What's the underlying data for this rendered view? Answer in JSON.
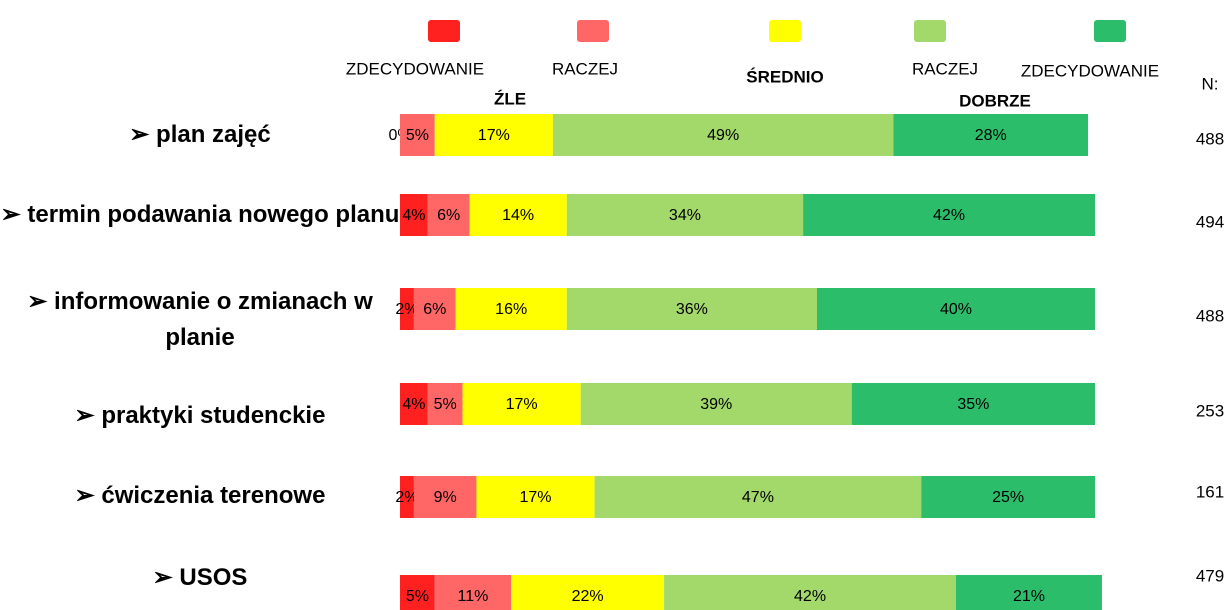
{
  "chart_data": {
    "type": "stacked_bar_horizontal",
    "categories": [
      "plan zajęć",
      "termin podawania nowego planu",
      "informowanie o zmianach w planie",
      "praktyki studenckie",
      "ćwiczenia terenowe",
      "USOS"
    ],
    "series": [
      {
        "name": "ZDECYDOWANIE",
        "color": "#ff2020",
        "values": [
          0,
          4,
          2,
          4,
          2,
          5
        ],
        "value_labels": [
          "0%",
          "4%",
          "2%",
          "4%",
          "2%",
          "5%"
        ]
      },
      {
        "name": "RACZEJ",
        "color": "#ff6666",
        "values": [
          5,
          6,
          6,
          5,
          9,
          11
        ],
        "value_labels": [
          "5%",
          "6%",
          "6%",
          "5%",
          "9%",
          "11%"
        ]
      },
      {
        "name": "ŚREDNIO",
        "color": "#ffff00",
        "values": [
          17,
          14,
          16,
          17,
          17,
          22
        ],
        "value_labels": [
          "17%",
          "14%",
          "16%",
          "17%",
          "17%",
          "22%"
        ]
      },
      {
        "name": "RACZEJ",
        "color": "#a3d86a",
        "values": [
          49,
          34,
          36,
          39,
          47,
          42
        ],
        "value_labels": [
          "49%",
          "34%",
          "36%",
          "39%",
          "47%",
          "42%"
        ]
      },
      {
        "name": "ZDECYDOWANIE",
        "color": "#2bbd6a",
        "values": [
          28,
          42,
          40,
          35,
          25,
          21
        ],
        "value_labels": [
          "28%",
          "42%",
          "40%",
          "35%",
          "25%",
          "21%"
        ]
      }
    ],
    "legend_groups": [
      "ŹLE",
      "DOBRZE"
    ],
    "n_label": "N:",
    "n_values": [
      488,
      494,
      488,
      253,
      161,
      479
    ],
    "xlim": [
      0,
      100
    ]
  }
}
